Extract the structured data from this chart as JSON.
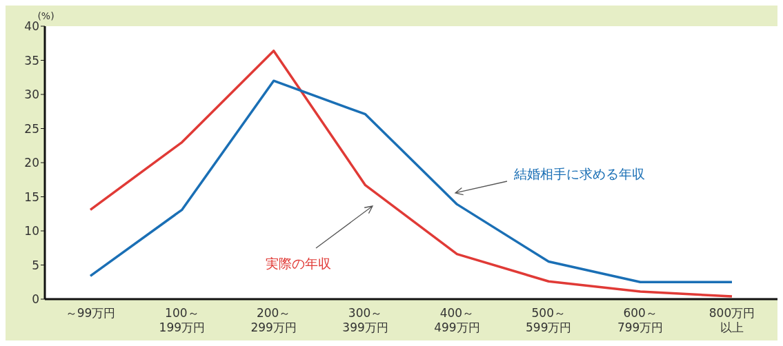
{
  "chart_data": {
    "type": "line",
    "ylabel": "(%)",
    "categories": [
      "～99万円",
      "100～199万円",
      "200～299万円",
      "300～399万円",
      "400～499万円",
      "500～599万円",
      "600～799万円",
      "800万円以上"
    ],
    "series": [
      {
        "name": "実際の年収",
        "color": "#e03a36",
        "values": [
          13.1,
          23.0,
          36.4,
          16.7,
          6.6,
          2.6,
          1.1,
          0.4
        ]
      },
      {
        "name": "結婚相手に求める年収",
        "color": "#1a6fb5",
        "values": [
          3.4,
          13.1,
          32.0,
          27.1,
          13.9,
          5.5,
          2.5,
          2.5
        ]
      }
    ],
    "ylim": [
      0,
      40
    ],
    "yticks": [
      0,
      5,
      10,
      15,
      20,
      25,
      30,
      35,
      40
    ],
    "grid": false,
    "legend": false,
    "marker": "none",
    "line_style": "solid"
  }
}
